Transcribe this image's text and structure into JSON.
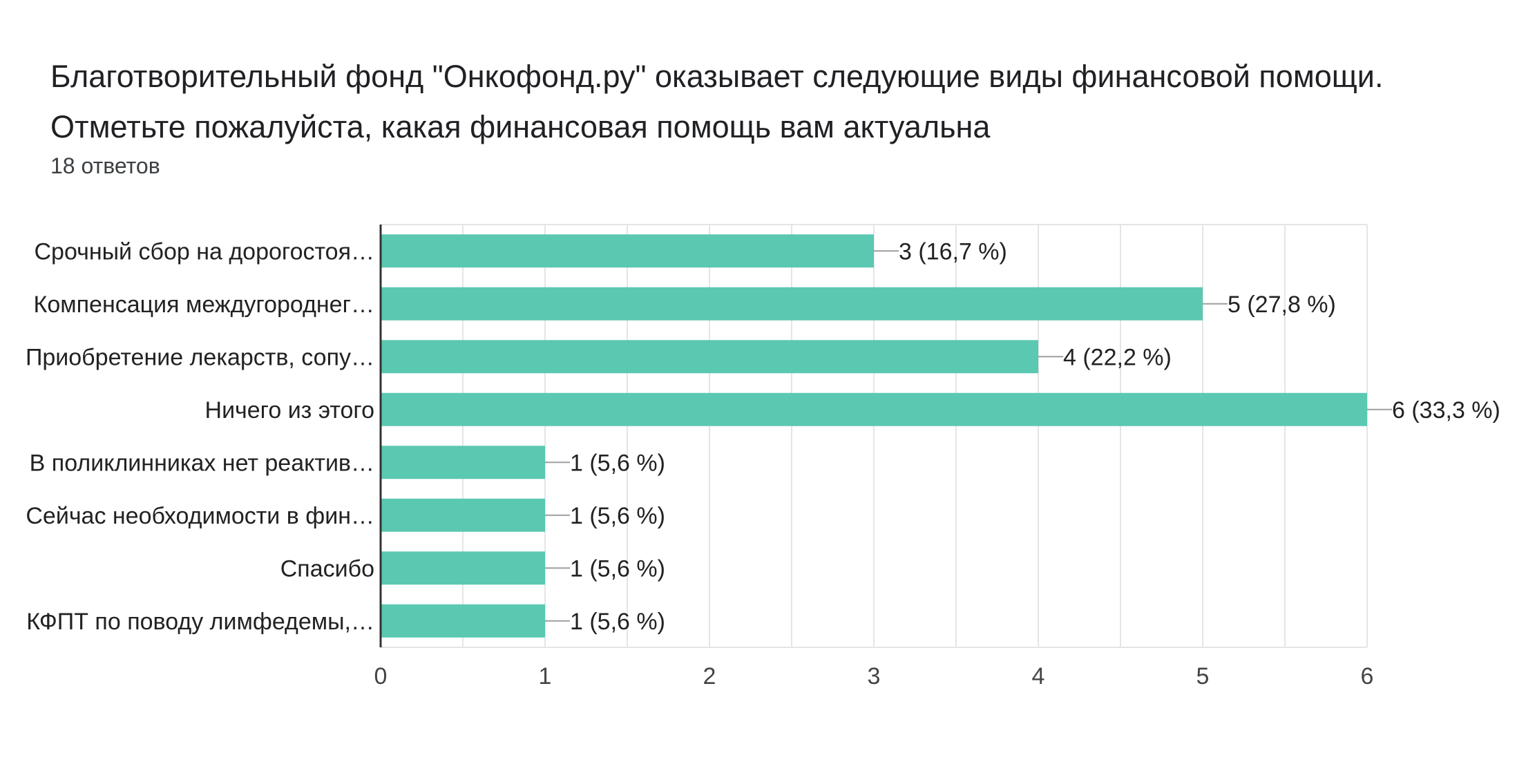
{
  "title": "Благотворительный фонд \"Онкофонд.ру\" оказывает следующие виды финансовой помощи. Отметьте пожалуйста, какая финансовая помощь вам актуальна",
  "responses": "18 ответов",
  "colors": {
    "bar": "#5bc8b2",
    "grid": "#e5e5e5",
    "axis": "#333333",
    "leader": "#9e9e9e"
  },
  "chart_data": {
    "type": "bar",
    "orientation": "horizontal",
    "title": "Благотворительный фонд \"Онкофонд.ру\" оказывает следующие виды финансовой помощи. Отметьте пожалуйста, какая финансовая помощь вам актуальна",
    "subtitle": "18 ответов",
    "categories": [
      "Срочный сбор на дорогостоя…",
      "Компенсация междугороднег…",
      "Приобретение лекарств, сопу…",
      "Ничего из этого",
      "В поликлинниках нет реактив…",
      "Сейчас необходимости в фин…",
      "Спасибо",
      "КФПТ по поводу лимфедемы,…"
    ],
    "values": [
      3,
      5,
      4,
      6,
      1,
      1,
      1,
      1
    ],
    "data_labels": [
      "3 (16,7 %)",
      "5 (27,8 %)",
      "4 (22,2 %)",
      "6 (33,3 %)",
      "1 (5,6 %)",
      "1 (5,6 %)",
      "1 (5,6 %)",
      "1 (5,6 %)"
    ],
    "xlim": [
      0,
      6
    ],
    "x_ticks": [
      0,
      1,
      2,
      3,
      4,
      5,
      6
    ],
    "grid": true,
    "legend": "none"
  }
}
